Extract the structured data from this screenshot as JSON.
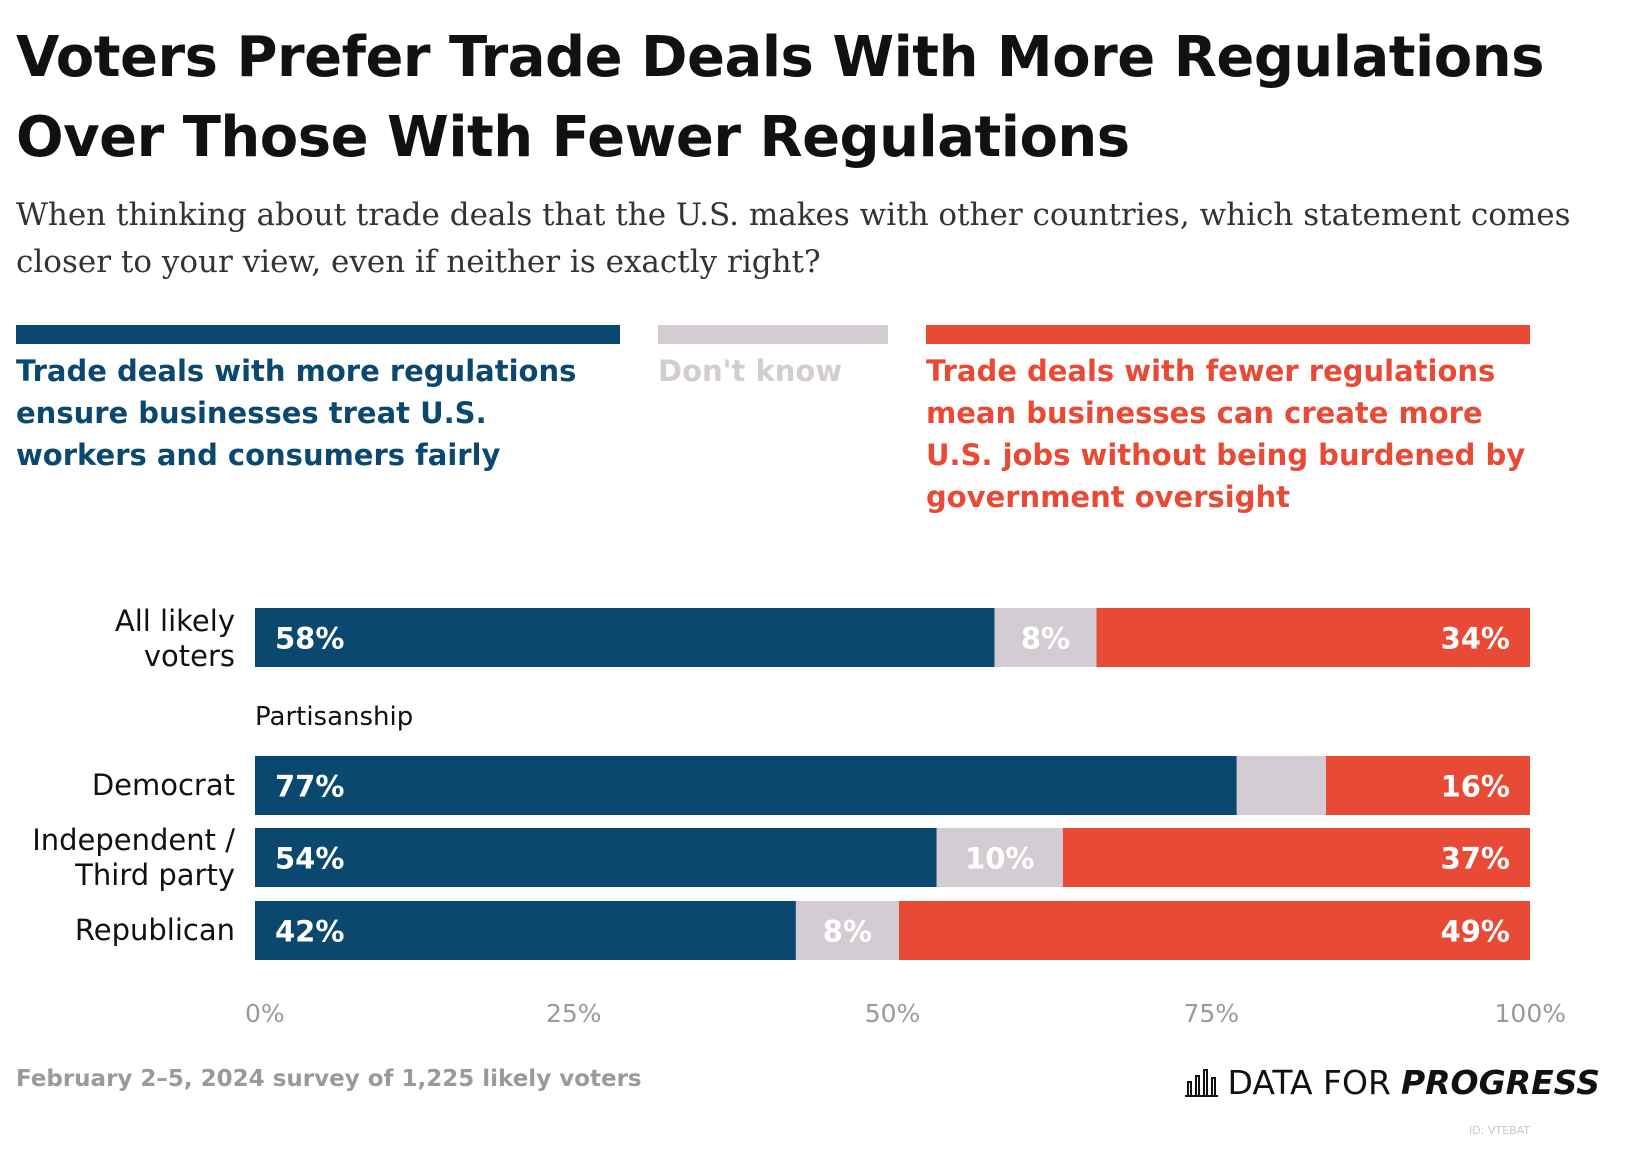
{
  "title": "Voters Prefer Trade Deals With More Regulations Over Those With Fewer Regulations",
  "subtitle": "When thinking about trade deals that the U.S. makes with other countries, which statement comes closer to your view, even if neither is exactly right?",
  "colors": {
    "more": "#0b4870",
    "dont_know": "#d3ccd2",
    "fewer": "#e84a35",
    "axis_text": "#9a9a9a"
  },
  "chart_data": {
    "type": "bar",
    "orientation": "horizontal",
    "stacked": true,
    "categories": [
      "All likely voters",
      "Democrat",
      "Independent / Third party",
      "Republican"
    ],
    "groups": [
      {
        "label": "",
        "categories": [
          "All likely voters"
        ]
      },
      {
        "label": "Partisanship",
        "categories": [
          "Democrat",
          "Independent / Third party",
          "Republican"
        ]
      }
    ],
    "series": [
      {
        "name": "Trade deals with more regulations ensure businesses treat U.S. workers and consumers fairly",
        "values": [
          58,
          77,
          54,
          42
        ],
        "labels": [
          "58%",
          "77%",
          "54%",
          "42%"
        ]
      },
      {
        "name": "Don't know",
        "values": [
          8,
          7,
          10,
          8
        ],
        "labels": [
          "8%",
          "",
          "10%",
          "8%"
        ]
      },
      {
        "name": "Trade deals with fewer regulations mean businesses can create more U.S. jobs without being burdened by government oversight",
        "values": [
          34,
          16,
          37,
          49
        ],
        "labels": [
          "34%",
          "16%",
          "37%",
          "49%"
        ]
      }
    ],
    "xlim": [
      0,
      100
    ],
    "xticks": [
      0,
      25,
      50,
      75,
      100
    ],
    "xtick_labels": [
      "0%",
      "25%",
      "50%",
      "75%",
      "100%"
    ],
    "legend_position": "top"
  },
  "footer": {
    "source": "February 2–5, 2024 survey of 1,225 likely voters",
    "logo_light": "DATA FOR",
    "logo_strong": "PROGRESS",
    "chart_id": "ID: VTEBAT"
  }
}
